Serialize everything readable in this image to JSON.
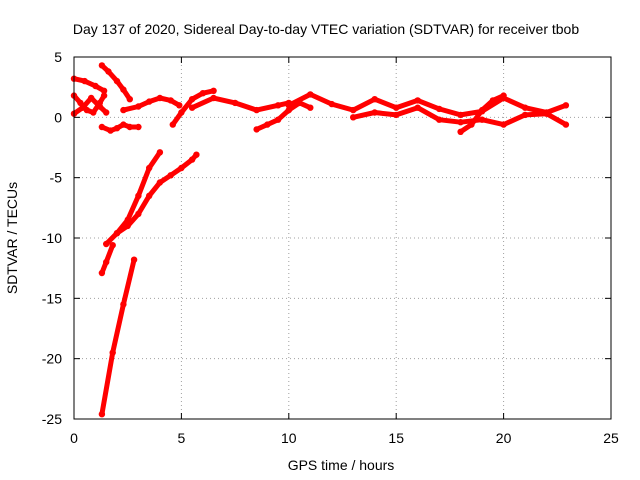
{
  "chart_data": {
    "type": "scatter",
    "title": "Day 137 of 2020, Sidereal Day-to-day VTEC variation (SDTVAR) for receiver tbob",
    "xlabel": "GPS time / hours",
    "ylabel": "SDTVAR / TECUs",
    "xlim": [
      0,
      25
    ],
    "ylim": [
      -25,
      5
    ],
    "xticks": [
      0,
      5,
      10,
      15,
      20,
      25
    ],
    "yticks": [
      5,
      0,
      -5,
      -10,
      -15,
      -20,
      -25
    ],
    "xtick_labels": [
      "0",
      "5",
      "10",
      "15",
      "20",
      "25"
    ],
    "ytick_labels": [
      "5",
      "0",
      "-5",
      "-10",
      "-15",
      "-20",
      "-25"
    ],
    "grid": true,
    "grid_style": "dotted",
    "series_color": "#ff0000",
    "series": [
      {
        "x": [
          0.0,
          0.3,
          0.6,
          0.9,
          1.2,
          1.4
        ],
        "y": [
          1.8,
          1.2,
          0.6,
          0.4,
          1.2,
          1.8
        ]
      },
      {
        "x": [
          0.0,
          0.5,
          1.0,
          1.4
        ],
        "y": [
          3.2,
          3.0,
          2.6,
          2.2
        ]
      },
      {
        "x": [
          0.0,
          0.4,
          0.8,
          1.2,
          1.5
        ],
        "y": [
          0.3,
          0.8,
          1.6,
          0.9,
          0.4
        ]
      },
      {
        "x": [
          1.3,
          1.6,
          2.0,
          2.3,
          2.6
        ],
        "y": [
          4.3,
          3.8,
          3.0,
          2.3,
          1.5
        ]
      },
      {
        "x": [
          1.3,
          1.7,
          2.0,
          2.3,
          2.6,
          3.0
        ],
        "y": [
          -0.8,
          -1.1,
          -0.9,
          -0.6,
          -0.8,
          -0.8
        ]
      },
      {
        "x": [
          2.3,
          3.0,
          3.5,
          4.0,
          4.5,
          4.9
        ],
        "y": [
          0.6,
          0.9,
          1.3,
          1.6,
          1.4,
          1.0
        ]
      },
      {
        "x": [
          4.6,
          5.0,
          5.5,
          6.0,
          6.5
        ],
        "y": [
          -0.6,
          0.4,
          1.5,
          2.0,
          2.2
        ]
      },
      {
        "x": [
          5.5,
          6.5,
          7.5,
          8.5,
          9.5,
          10.0
        ],
        "y": [
          0.8,
          1.6,
          1.2,
          0.6,
          1.0,
          1.2
        ]
      },
      {
        "x": [
          8.5,
          9.0,
          9.5,
          10.0,
          10.5,
          11.0
        ],
        "y": [
          -1.0,
          -0.6,
          -0.2,
          0.6,
          1.2,
          0.8
        ]
      },
      {
        "x": [
          10.0,
          11.0,
          12.0,
          13.0,
          14.0,
          15.0,
          16.0,
          17.0,
          18.0,
          19.0,
          20.0,
          21.0,
          22.0,
          22.9
        ],
        "y": [
          1.0,
          1.9,
          1.1,
          0.6,
          1.5,
          0.8,
          1.4,
          0.7,
          0.2,
          0.5,
          1.6,
          0.8,
          0.4,
          1.0
        ]
      },
      {
        "x": [
          13.0,
          14.0,
          15.0,
          16.0,
          17.0,
          18.0,
          19.0,
          20.0,
          21.0,
          22.0,
          22.9
        ],
        "y": [
          0.0,
          0.4,
          0.2,
          0.8,
          -0.2,
          -0.4,
          -0.2,
          -0.6,
          0.2,
          0.3,
          -0.6
        ]
      },
      {
        "x": [
          18.0,
          18.5,
          19.0,
          19.5,
          20.0
        ],
        "y": [
          -1.2,
          -0.6,
          0.6,
          1.4,
          1.8
        ]
      },
      {
        "x": [
          1.5,
          2.0,
          2.5,
          3.0,
          3.5,
          4.0
        ],
        "y": [
          -10.5,
          -9.6,
          -8.5,
          -6.5,
          -4.2,
          -2.9
        ]
      },
      {
        "x": [
          2.0,
          2.5,
          3.0,
          3.5,
          4.0,
          4.5,
          5.0,
          5.5,
          5.7
        ],
        "y": [
          -9.6,
          -9.0,
          -8.0,
          -6.5,
          -5.4,
          -4.8,
          -4.2,
          -3.5,
          -3.1
        ]
      },
      {
        "x": [
          1.3,
          1.5,
          1.8
        ],
        "y": [
          -12.9,
          -12.0,
          -10.6
        ]
      },
      {
        "x": [
          1.3,
          1.8,
          2.3,
          2.8
        ],
        "y": [
          -24.6,
          -19.5,
          -15.5,
          -11.8
        ]
      }
    ]
  }
}
